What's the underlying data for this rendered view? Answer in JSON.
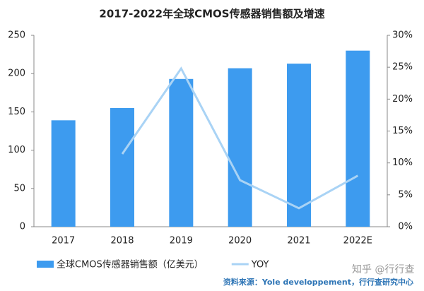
{
  "chart_data": {
    "type": "bar-line",
    "title": "2017-2022年全球CMOS传感器销售额及增速",
    "categories": [
      "2017",
      "2018",
      "2019",
      "2020",
      "2021",
      "2022E"
    ],
    "series": [
      {
        "name": "全球CMOS传感器销售额（亿美元）",
        "type": "bar",
        "color": "#3d9bef",
        "values": [
          139,
          155,
          193,
          207,
          213,
          230
        ]
      },
      {
        "name": "YOY",
        "type": "line",
        "axis": "y2",
        "color": "#a9d3f5",
        "values": [
          null,
          11.4,
          24.8,
          7.3,
          2.9,
          8.0
        ]
      }
    ],
    "ylim": [
      0,
      250
    ],
    "yticks": [
      0,
      50,
      100,
      150,
      200,
      250
    ],
    "y2lim": [
      0,
      30
    ],
    "y2ticks": [
      {
        "value": 0,
        "label": "0%"
      },
      {
        "value": 5,
        "label": "5%"
      },
      {
        "value": 10,
        "label": "10%"
      },
      {
        "value": 15,
        "label": "15%"
      },
      {
        "value": 20,
        "label": "20%"
      },
      {
        "value": 25,
        "label": "25%"
      },
      {
        "value": 30,
        "label": "30%"
      }
    ],
    "legend": "bottom",
    "source": "资料来源：Yole developpement，行行查研究中心",
    "watermark": "知乎 @行行查"
  }
}
